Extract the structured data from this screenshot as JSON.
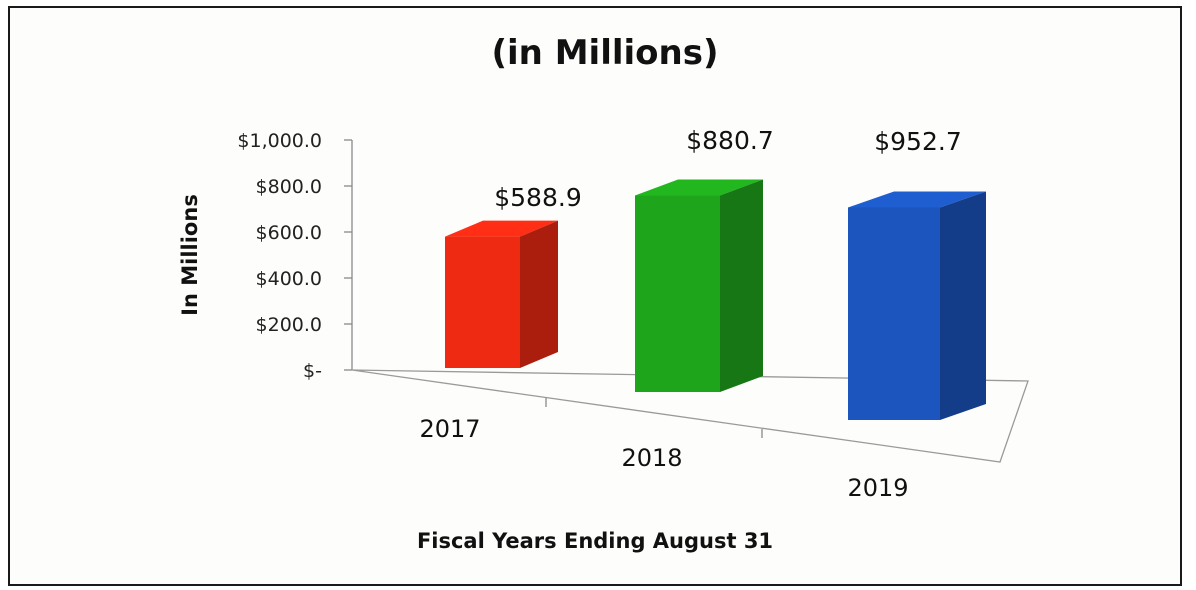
{
  "chart_data": {
    "type": "bar",
    "title": "(in Millions)",
    "xlabel": "Fiscal Years Ending August 31",
    "ylabel": "In Millions",
    "categories": [
      "2017",
      "2018",
      "2019"
    ],
    "values": [
      588.9,
      880.7,
      952.7
    ],
    "value_labels": [
      "$588.9",
      "$880.7",
      "$952.7"
    ],
    "yticks": [
      "$-",
      "$200.0",
      "$400.0",
      "$600.0",
      "$800.0",
      "$1,000.0"
    ],
    "ylim": [
      0,
      1000
    ],
    "grid": false,
    "legend": "none",
    "style": "3d-column",
    "colors": [
      "#ee2a12",
      "#1fa51c",
      "#1c55be"
    ]
  }
}
